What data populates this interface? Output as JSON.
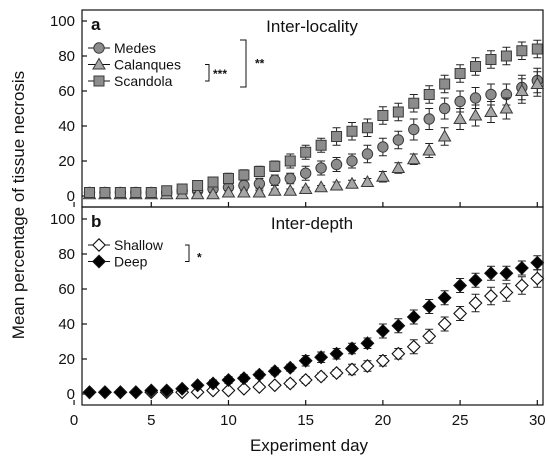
{
  "chart_data": [
    {
      "type": "scatter",
      "panel": "a",
      "title": "Inter-locality",
      "x": [
        1,
        2,
        3,
        4,
        5,
        6,
        7,
        8,
        9,
        10,
        11,
        12,
        13,
        14,
        15,
        16,
        17,
        18,
        19,
        20,
        21,
        22,
        23,
        24,
        25,
        26,
        27,
        28,
        29,
        30
      ],
      "series": [
        {
          "name": "Medes",
          "marker": "circle",
          "color": "#808080",
          "values": [
            2,
            2,
            2,
            2,
            2,
            2,
            3,
            3,
            4,
            5,
            6,
            7,
            9,
            10,
            13,
            16,
            18,
            20,
            24,
            28,
            32,
            38,
            44,
            50,
            54,
            56,
            58,
            58,
            62,
            66
          ],
          "errors": [
            1.5,
            1.5,
            1.5,
            1.5,
            1.5,
            1.5,
            1.5,
            1.5,
            2,
            2,
            2,
            3,
            3,
            3,
            4,
            4,
            4,
            4,
            5,
            5,
            5,
            6,
            6,
            6,
            6,
            6,
            6,
            6,
            7,
            7
          ]
        },
        {
          "name": "Calanques",
          "marker": "triangle",
          "color": "#808080",
          "values": [
            1,
            1,
            1,
            1,
            1,
            1,
            1,
            1,
            1,
            2,
            2,
            2,
            3,
            3,
            4,
            5,
            6,
            7,
            8,
            11,
            16,
            21,
            26,
            34,
            44,
            46,
            48,
            50,
            60,
            64
          ],
          "errors": [
            1,
            1,
            1,
            1,
            1,
            1,
            1,
            1,
            1,
            1,
            1,
            1,
            1,
            1,
            1,
            1,
            2,
            2,
            2,
            3,
            3,
            3,
            4,
            5,
            6,
            6,
            6,
            6,
            7,
            7
          ]
        },
        {
          "name": "Scandola",
          "marker": "square",
          "color": "#808080",
          "values": [
            2,
            2,
            2,
            2,
            2,
            3,
            4,
            6,
            8,
            10,
            12,
            14,
            17,
            20,
            25,
            29,
            34,
            37,
            39,
            46,
            48,
            53,
            58,
            64,
            70,
            74,
            78,
            80,
            83,
            84
          ],
          "errors": [
            1.5,
            1.5,
            1.5,
            1.5,
            1.5,
            1.5,
            1.5,
            2,
            2,
            3,
            3,
            3,
            3,
            4,
            4,
            4,
            5,
            5,
            5,
            5,
            5,
            5,
            5,
            5,
            5,
            5,
            5,
            5,
            5,
            5
          ]
        }
      ],
      "significance": [
        "***",
        "**"
      ],
      "ylim": [
        0,
        100
      ],
      "yticks": [
        0,
        20,
        40,
        60,
        80,
        100
      ],
      "xlim": [
        0,
        31
      ],
      "xticks": [
        0,
        5,
        10,
        15,
        20,
        25,
        30
      ],
      "legend": "top-left"
    },
    {
      "type": "scatter",
      "panel": "b",
      "title": "Inter-depth",
      "x": [
        1,
        2,
        3,
        4,
        5,
        6,
        7,
        8,
        9,
        10,
        11,
        12,
        13,
        14,
        15,
        16,
        17,
        18,
        19,
        20,
        21,
        22,
        23,
        24,
        25,
        26,
        27,
        28,
        29,
        30
      ],
      "series": [
        {
          "name": "Shallow",
          "marker": "diamond-open",
          "color": "#ffffff",
          "values": [
            1,
            1,
            1,
            1,
            1,
            1,
            1,
            1,
            2,
            2,
            3,
            4,
            5,
            6,
            8,
            10,
            12,
            14,
            16,
            19,
            23,
            27,
            33,
            40,
            46,
            52,
            56,
            58,
            62,
            66
          ],
          "errors": [
            1,
            1,
            1,
            1,
            1,
            1,
            1,
            1,
            1,
            1,
            1,
            1,
            1,
            2,
            2,
            2,
            2,
            3,
            3,
            3,
            3,
            4,
            4,
            4,
            4,
            5,
            5,
            5,
            5,
            5
          ]
        },
        {
          "name": "Deep",
          "marker": "diamond-filled",
          "color": "#000000",
          "values": [
            1,
            1,
            1,
            1,
            2,
            2,
            3,
            5,
            6,
            8,
            9,
            11,
            13,
            15,
            19,
            21,
            23,
            26,
            29,
            36,
            39,
            44,
            50,
            55,
            62,
            65,
            69,
            69,
            72,
            75
          ],
          "errors": [
            1,
            1,
            1,
            1,
            1,
            1,
            1,
            1,
            2,
            2,
            2,
            2,
            2,
            2,
            3,
            3,
            3,
            3,
            3,
            4,
            4,
            4,
            4,
            4,
            4,
            4,
            4,
            4,
            4,
            4
          ]
        }
      ],
      "significance": [
        "*"
      ],
      "ylim": [
        0,
        100
      ],
      "yticks": [
        0,
        20,
        40,
        60,
        80,
        100
      ],
      "xlim": [
        0,
        31
      ],
      "xticks": [
        0,
        5,
        10,
        15,
        20,
        25,
        30
      ],
      "legend": "top-left"
    }
  ],
  "labels": {
    "ylabel": "Mean percentage of tissue necrosis",
    "xlabel": "Experiment day"
  }
}
